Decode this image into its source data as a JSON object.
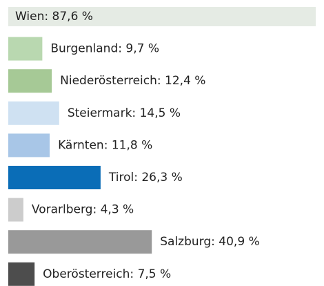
{
  "chart_data": {
    "type": "hbar",
    "categories": [
      "Wien",
      "Burgenland",
      "Niederösterreich",
      "Steiermark",
      "Kärnten",
      "Tirol",
      "Vorarlberg",
      "Salzburg",
      "Oberösterreich"
    ],
    "values": [
      87.6,
      9.7,
      12.4,
      14.5,
      11.8,
      26.3,
      4.3,
      40.9,
      7.5
    ],
    "value_labels": [
      "87,6 %",
      "9,7 %",
      "12,4 %",
      "14,5 %",
      "11,8 %",
      "26,3 %",
      "4,3 %",
      "40,9 %",
      "7,5 %"
    ],
    "colors": [
      "#e5ebe4",
      "#b9d8b0",
      "#a6c996",
      "#cfe1f2",
      "#a8c6e7",
      "#0a6db7",
      "#cccccc",
      "#999999",
      "#4d4d4d"
    ],
    "xlim": [
      0,
      87.6
    ]
  }
}
